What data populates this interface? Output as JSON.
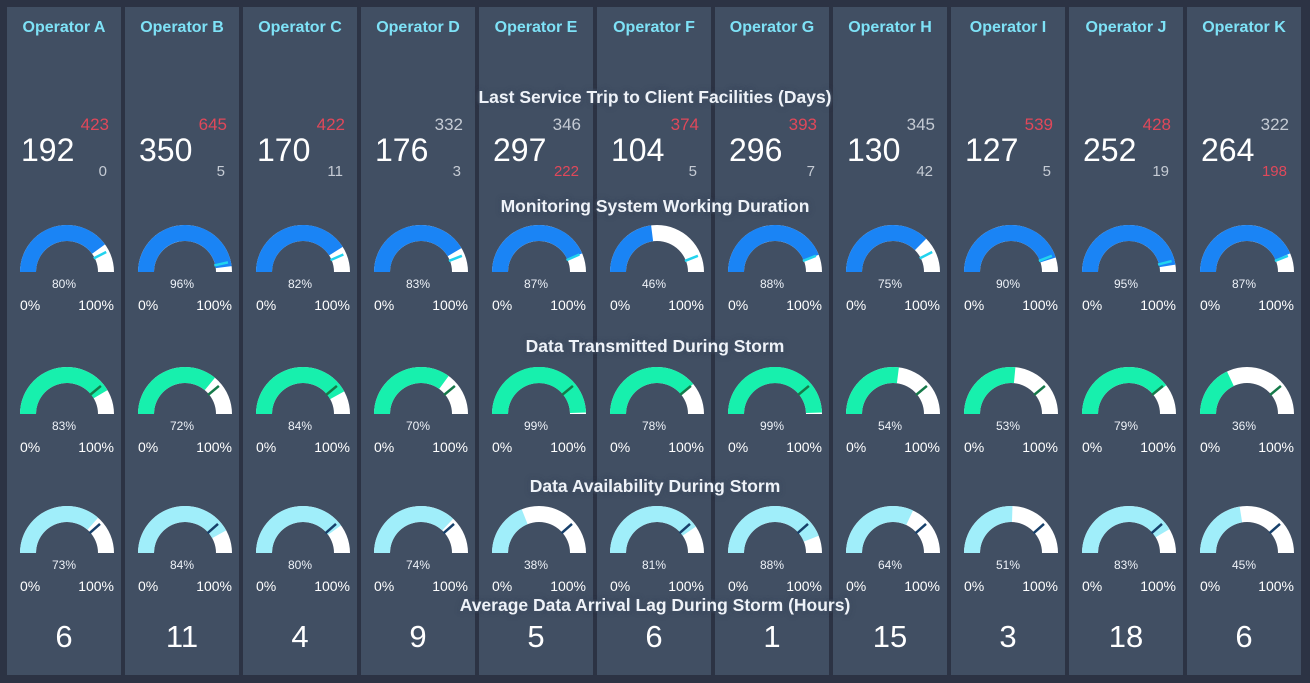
{
  "sections": {
    "trip": "Last Service Trip to Client Facilities (Days)",
    "monitoring": "Monitoring System Working Duration",
    "transmitted": "Data Transmitted During Storm",
    "availability": "Data Availability During Storm",
    "lag": "Average Data Arrival Lag During Storm (Hours)"
  },
  "gauge_scale": {
    "min_label": "0%",
    "max_label": "100%"
  },
  "colors": {
    "background": "#2c3344",
    "panel": "#414f63",
    "operator_name": "#7ee2f7",
    "alert_red": "#e0485a",
    "muted_grey": "#c5cbd4",
    "monitoring_fill": "#1a84f5",
    "transmitted_fill": "#17f0ad",
    "availability_fill": "#a0eefa",
    "gauge_track": "#ffffff",
    "monitoring_marker": "#22d3ee",
    "transmitted_marker": "#167a4a",
    "availability_marker": "#17406b"
  },
  "operators": [
    {
      "name": "Operator A",
      "trip": {
        "value": "192",
        "top": "423",
        "bottom": "0",
        "top_color": "red",
        "bottom_color": "grey"
      },
      "monitoring": {
        "label": "80%",
        "value": 0.8,
        "marker": 0.85
      },
      "transmitted": {
        "label": "83%",
        "value": 0.83,
        "marker": 0.78
      },
      "availability": {
        "label": "73%",
        "value": 0.73,
        "marker": 0.77
      },
      "lag": "6"
    },
    {
      "name": "Operator B",
      "trip": {
        "value": "350",
        "top": "645",
        "bottom": "5",
        "top_color": "red",
        "bottom_color": "grey"
      },
      "monitoring": {
        "label": "96%",
        "value": 0.96,
        "marker": 0.93
      },
      "transmitted": {
        "label": "72%",
        "value": 0.72,
        "marker": 0.78
      },
      "availability": {
        "label": "84%",
        "value": 0.84,
        "marker": 0.77
      },
      "lag": "11"
    },
    {
      "name": "Operator C",
      "trip": {
        "value": "170",
        "top": "422",
        "bottom": "11",
        "top_color": "red",
        "bottom_color": "grey"
      },
      "monitoring": {
        "label": "82%",
        "value": 0.82,
        "marker": 0.87
      },
      "transmitted": {
        "label": "84%",
        "value": 0.84,
        "marker": 0.78
      },
      "availability": {
        "label": "80%",
        "value": 0.8,
        "marker": 0.77
      },
      "lag": "4"
    },
    {
      "name": "Operator D",
      "trip": {
        "value": "176",
        "top": "332",
        "bottom": "3",
        "top_color": "grey",
        "bottom_color": "grey"
      },
      "monitoring": {
        "label": "83%",
        "value": 0.83,
        "marker": 0.88
      },
      "transmitted": {
        "label": "70%",
        "value": 0.7,
        "marker": 0.78
      },
      "availability": {
        "label": "74%",
        "value": 0.74,
        "marker": 0.77
      },
      "lag": "9"
    },
    {
      "name": "Operator E",
      "trip": {
        "value": "297",
        "top": "346",
        "bottom": "222",
        "top_color": "grey",
        "bottom_color": "red"
      },
      "monitoring": {
        "label": "87%",
        "value": 0.87,
        "marker": 0.87
      },
      "transmitted": {
        "label": "99%",
        "value": 0.99,
        "marker": 0.78
      },
      "availability": {
        "label": "38%",
        "value": 0.38,
        "marker": 0.77
      },
      "lag": "5"
    },
    {
      "name": "Operator F",
      "trip": {
        "value": "104",
        "top": "374",
        "bottom": "5",
        "top_color": "red",
        "bottom_color": "grey"
      },
      "monitoring": {
        "label": "46%",
        "value": 0.46,
        "marker": 0.88
      },
      "transmitted": {
        "label": "78%",
        "value": 0.78,
        "marker": 0.78
      },
      "availability": {
        "label": "81%",
        "value": 0.81,
        "marker": 0.77
      },
      "lag": "6"
    },
    {
      "name": "Operator G",
      "trip": {
        "value": "296",
        "top": "393",
        "bottom": "7",
        "top_color": "red",
        "bottom_color": "grey"
      },
      "monitoring": {
        "label": "88%",
        "value": 0.88,
        "marker": 0.88
      },
      "transmitted": {
        "label": "99%",
        "value": 0.99,
        "marker": 0.78
      },
      "availability": {
        "label": "88%",
        "value": 0.88,
        "marker": 0.77
      },
      "lag": "1"
    },
    {
      "name": "Operator H",
      "trip": {
        "value": "130",
        "top": "345",
        "bottom": "42",
        "top_color": "grey",
        "bottom_color": "grey"
      },
      "monitoring": {
        "label": "75%",
        "value": 0.75,
        "marker": 0.85
      },
      "transmitted": {
        "label": "54%",
        "value": 0.54,
        "marker": 0.78
      },
      "availability": {
        "label": "64%",
        "value": 0.64,
        "marker": 0.77
      },
      "lag": "15"
    },
    {
      "name": "Operator I",
      "trip": {
        "value": "127",
        "top": "539",
        "bottom": "5",
        "top_color": "red",
        "bottom_color": "grey"
      },
      "monitoring": {
        "label": "90%",
        "value": 0.9,
        "marker": 0.88
      },
      "transmitted": {
        "label": "53%",
        "value": 0.53,
        "marker": 0.78
      },
      "availability": {
        "label": "51%",
        "value": 0.51,
        "marker": 0.77
      },
      "lag": "3"
    },
    {
      "name": "Operator J",
      "trip": {
        "value": "252",
        "top": "428",
        "bottom": "19",
        "top_color": "red",
        "bottom_color": "grey"
      },
      "monitoring": {
        "label": "95%",
        "value": 0.95,
        "marker": 0.92
      },
      "transmitted": {
        "label": "79%",
        "value": 0.79,
        "marker": 0.78
      },
      "availability": {
        "label": "83%",
        "value": 0.83,
        "marker": 0.77
      },
      "lag": "18"
    },
    {
      "name": "Operator K",
      "trip": {
        "value": "264",
        "top": "322",
        "bottom": "198",
        "top_color": "grey",
        "bottom_color": "red"
      },
      "monitoring": {
        "label": "87%",
        "value": 0.87,
        "marker": 0.88
      },
      "transmitted": {
        "label": "36%",
        "value": 0.36,
        "marker": 0.78
      },
      "availability": {
        "label": "45%",
        "value": 0.45,
        "marker": 0.77
      },
      "lag": "6"
    }
  ]
}
